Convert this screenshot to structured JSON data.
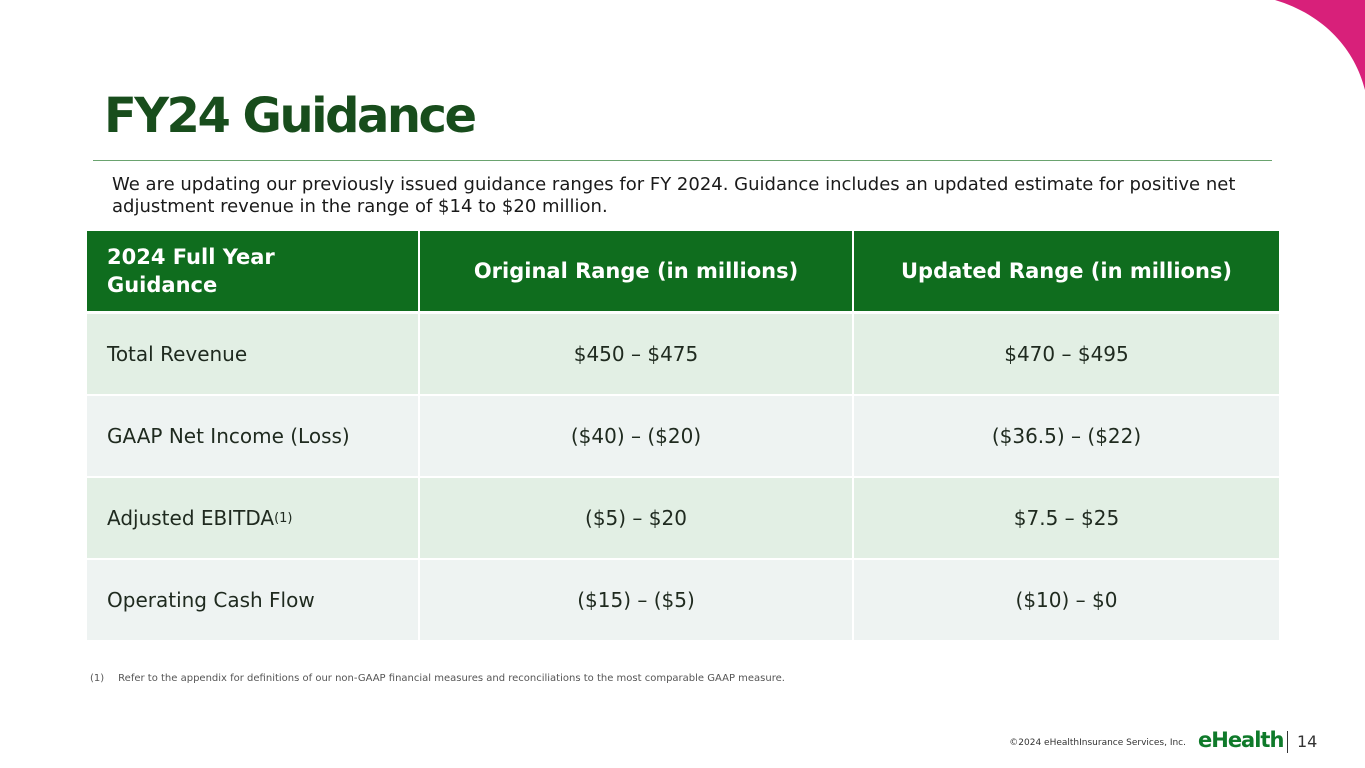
{
  "title": "FY24 Guidance",
  "intro": "We are updating our previously issued guidance ranges for FY 2024. Guidance includes an updated estimate for positive net adjustment revenue in the range of $14 to $20 million.",
  "table": {
    "header": [
      "2024 Full Year Guidance",
      "Original Range (in millions)",
      "Updated Range (in millions)"
    ],
    "rows": [
      {
        "label": "Total Revenue",
        "original": "$450 – $475",
        "updated": "$470 – $495"
      },
      {
        "label": "GAAP Net Income (Loss)",
        "original": "($40) – ($20)",
        "updated": "($36.5) – ($22)"
      },
      {
        "label": "Adjusted EBITDA",
        "note": "(1)",
        "original": "($5) – $20",
        "updated": "$7.5 – $25"
      },
      {
        "label": "Operating Cash Flow",
        "original": "($15) – ($5)",
        "updated": "($10) – $0"
      }
    ]
  },
  "footnote": {
    "marker": "(1)",
    "text": "Refer to the appendix for definitions of our non-GAAP financial measures and reconciliations to the most comparable GAAP measure."
  },
  "footer": {
    "copyright": "©2024 eHealthInsurance Services, Inc.",
    "logo": "eHealth",
    "page": "14"
  }
}
